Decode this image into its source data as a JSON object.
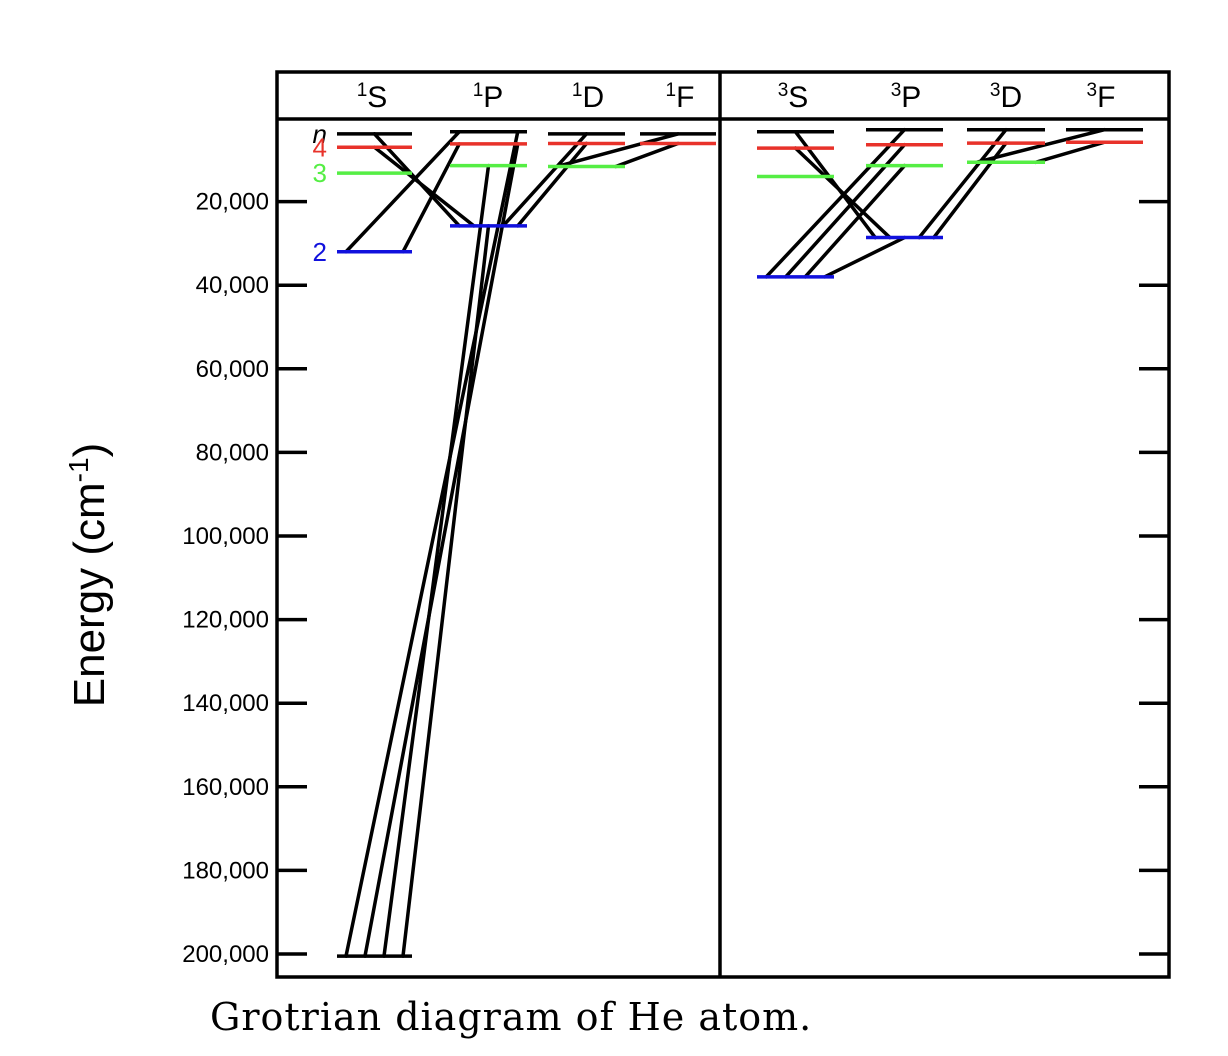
{
  "caption": "Grotrian diagram of He atom.",
  "axis": {
    "label_main": "Energy (cm",
    "label_sup": "-1",
    "label_end": ")",
    "ticks": [
      {
        "value": 20000,
        "label": "20,000"
      },
      {
        "value": 40000,
        "label": "40,000"
      },
      {
        "value": 60000,
        "label": "60,000"
      },
      {
        "value": 80000,
        "label": "80,000"
      },
      {
        "value": 100000,
        "label": "100,000"
      },
      {
        "value": 120000,
        "label": "120,000"
      },
      {
        "value": 140000,
        "label": "140,000"
      },
      {
        "value": 160000,
        "label": "160,000"
      },
      {
        "value": 180000,
        "label": "180,000"
      },
      {
        "value": 200000,
        "label": "200,000"
      }
    ],
    "ylim": [
      0,
      206000
    ]
  },
  "columns": [
    {
      "id": "1S",
      "sup": "1",
      "letter": "S"
    },
    {
      "id": "1P",
      "sup": "1",
      "letter": "P"
    },
    {
      "id": "1D",
      "sup": "1",
      "letter": "D"
    },
    {
      "id": "1F",
      "sup": "1",
      "letter": "F"
    },
    {
      "id": "3S",
      "sup": "3",
      "letter": "S"
    },
    {
      "id": "3P",
      "sup": "3",
      "letter": "P"
    },
    {
      "id": "3D",
      "sup": "3",
      "letter": "D"
    },
    {
      "id": "3F",
      "sup": "3",
      "letter": "F"
    }
  ],
  "n_labels": [
    {
      "text": "n",
      "color": "#000000",
      "italic": true,
      "level": 3800
    },
    {
      "text": "4",
      "color": "#e8322a",
      "italic": false,
      "level": 7000
    },
    {
      "text": "3",
      "color": "#55ee44",
      "italic": false,
      "level": 13200
    },
    {
      "text": "2",
      "color": "#1111dd",
      "italic": false,
      "level": 32000
    }
  ],
  "colors": {
    "n2": "#1111dd",
    "n3": "#55ee44",
    "n4": "#e8322a",
    "n5": "#000000"
  },
  "levels": [
    {
      "col": "1S",
      "n": 1,
      "energy": 200500
    },
    {
      "col": "1S",
      "n": 2,
      "energy": 32000
    },
    {
      "col": "1S",
      "n": 3,
      "energy": 13200
    },
    {
      "col": "1S",
      "n": 4,
      "energy": 7000
    },
    {
      "col": "1S",
      "n": 5,
      "energy": 3800
    },
    {
      "col": "1P",
      "n": 2,
      "energy": 25800
    },
    {
      "col": "1P",
      "n": 3,
      "energy": 11400
    },
    {
      "col": "1P",
      "n": 4,
      "energy": 6200
    },
    {
      "col": "1P",
      "n": 5,
      "energy": 3300
    },
    {
      "col": "1D",
      "n": 3,
      "energy": 11600
    },
    {
      "col": "1D",
      "n": 4,
      "energy": 6100
    },
    {
      "col": "1D",
      "n": 5,
      "energy": 3800
    },
    {
      "col": "1F",
      "n": 4,
      "energy": 6100
    },
    {
      "col": "1F",
      "n": 5,
      "energy": 3800
    },
    {
      "col": "3S",
      "n": 2,
      "energy": 38000
    },
    {
      "col": "3S",
      "n": 3,
      "energy": 14000
    },
    {
      "col": "3S",
      "n": 4,
      "energy": 7200
    },
    {
      "col": "3S",
      "n": 5,
      "energy": 3300
    },
    {
      "col": "3P",
      "n": 2,
      "energy": 28600
    },
    {
      "col": "3P",
      "n": 3,
      "energy": 11400
    },
    {
      "col": "3P",
      "n": 4,
      "energy": 6400
    },
    {
      "col": "3P",
      "n": 5,
      "energy": 2800
    },
    {
      "col": "3D",
      "n": 3,
      "energy": 10600
    },
    {
      "col": "3D",
      "n": 4,
      "energy": 6000
    },
    {
      "col": "3D",
      "n": 5,
      "energy": 2800
    },
    {
      "col": "3F",
      "n": 4,
      "energy": 5800
    },
    {
      "col": "3F",
      "n": 5,
      "energy": 2800
    }
  ],
  "transitions": [
    {
      "from": [
        "1S",
        1
      ],
      "to": [
        "1P",
        2
      ]
    },
    {
      "from": [
        "1S",
        1
      ],
      "to": [
        "1P",
        3
      ]
    },
    {
      "from": [
        "1S",
        1
      ],
      "to": [
        "1P",
        4
      ]
    },
    {
      "from": [
        "1S",
        1
      ],
      "to": [
        "1P",
        5
      ]
    },
    {
      "from": [
        "1S",
        2
      ],
      "to": [
        "1P",
        4
      ]
    },
    {
      "from": [
        "1S",
        2
      ],
      "to": [
        "1P",
        5
      ]
    },
    {
      "from": [
        "1S",
        4
      ],
      "to": [
        "1P",
        2
      ]
    },
    {
      "from": [
        "1S",
        5
      ],
      "to": [
        "1P",
        2
      ]
    },
    {
      "from": [
        "1P",
        2
      ],
      "to": [
        "1D",
        4
      ]
    },
    {
      "from": [
        "1P",
        2
      ],
      "to": [
        "1D",
        5
      ]
    },
    {
      "from": [
        "1D",
        3
      ],
      "to": [
        "1F",
        4
      ]
    },
    {
      "from": [
        "1D",
        3
      ],
      "to": [
        "1F",
        5
      ]
    },
    {
      "from": [
        "3S",
        2
      ],
      "to": [
        "3P",
        3
      ]
    },
    {
      "from": [
        "3S",
        2
      ],
      "to": [
        "3P",
        4
      ]
    },
    {
      "from": [
        "3S",
        2
      ],
      "to": [
        "3P",
        5
      ]
    },
    {
      "from": [
        "3S",
        2
      ],
      "to": [
        "3P",
        2
      ]
    },
    {
      "from": [
        "3S",
        4
      ],
      "to": [
        "3P",
        2
      ]
    },
    {
      "from": [
        "3S",
        5
      ],
      "to": [
        "3P",
        2
      ]
    },
    {
      "from": [
        "3P",
        2
      ],
      "to": [
        "3D",
        4
      ]
    },
    {
      "from": [
        "3P",
        2
      ],
      "to": [
        "3D",
        5
      ]
    },
    {
      "from": [
        "3D",
        3
      ],
      "to": [
        "3F",
        4
      ]
    },
    {
      "from": [
        "3D",
        3
      ],
      "to": [
        "3F",
        5
      ]
    }
  ]
}
